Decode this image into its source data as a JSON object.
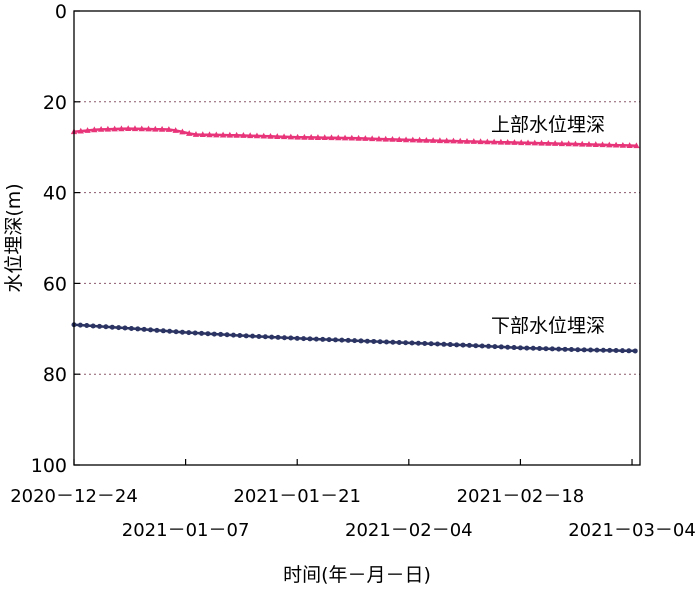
{
  "chart_data": {
    "type": "scatter",
    "xlabel": "时间(年－月－日)",
    "ylabel": "水位埋深(m)",
    "x_range": [
      "2020-12-24",
      "2021-03-05"
    ],
    "ylim": [
      0,
      100
    ],
    "y_inverted": true,
    "y_ticks": [
      0,
      20,
      40,
      60,
      80,
      100
    ],
    "x_ticks": [
      {
        "date": "2020-12-24",
        "label": "2020－12－24",
        "row": 1
      },
      {
        "date": "2021-01-07",
        "label": "2021－01－07",
        "row": 2
      },
      {
        "date": "2021-01-21",
        "label": "2021－01－21",
        "row": 1
      },
      {
        "date": "2021-02-04",
        "label": "2021－02－04",
        "row": 2
      },
      {
        "date": "2021-02-18",
        "label": "2021－02－18",
        "row": 1
      },
      {
        "date": "2021-03-04",
        "label": "2021－03－04",
        "row": 2
      }
    ],
    "grid": {
      "horizontal": true,
      "style": "dotted",
      "at": [
        20,
        40,
        60,
        80
      ],
      "color": "#8a5a6e"
    },
    "series": [
      {
        "name": "上部水位埋深",
        "color": "#e8357a",
        "marker": "triangle",
        "points": [
          [
            "2020-12-24",
            26.6
          ],
          [
            "2020-12-27",
            26.1
          ],
          [
            "2020-12-31",
            25.9
          ],
          [
            "2021-01-05",
            26.1
          ],
          [
            "2021-01-06",
            26.4
          ],
          [
            "2021-01-08",
            27.2
          ],
          [
            "2021-01-14",
            27.4
          ],
          [
            "2021-01-21",
            27.8
          ],
          [
            "2021-01-28",
            28.0
          ],
          [
            "2021-02-04",
            28.4
          ],
          [
            "2021-02-11",
            28.7
          ],
          [
            "2021-02-18",
            29.0
          ],
          [
            "2021-02-25",
            29.3
          ],
          [
            "2021-03-05",
            29.7
          ]
        ]
      },
      {
        "name": "下部水位埋深",
        "color": "#2b3462",
        "marker": "circle",
        "points": [
          [
            "2020-12-24",
            69.1
          ],
          [
            "2020-12-31",
            69.9
          ],
          [
            "2021-01-07",
            70.8
          ],
          [
            "2021-01-14",
            71.5
          ],
          [
            "2021-01-21",
            72.1
          ],
          [
            "2021-01-28",
            72.6
          ],
          [
            "2021-02-04",
            73.1
          ],
          [
            "2021-02-11",
            73.6
          ],
          [
            "2021-02-18",
            74.2
          ],
          [
            "2021-02-25",
            74.6
          ],
          [
            "2021-03-05",
            74.9
          ]
        ]
      }
    ]
  }
}
